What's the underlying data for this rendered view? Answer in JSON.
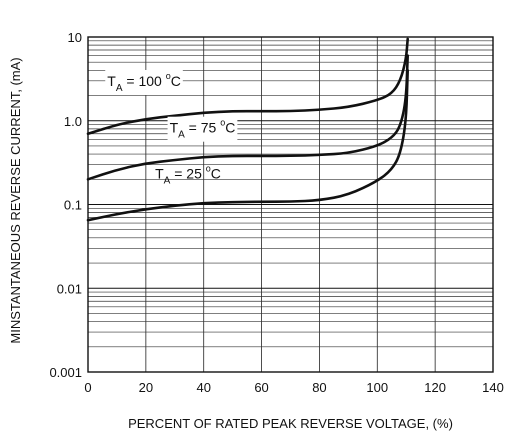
{
  "chart_data": {
    "type": "line",
    "xlabel": "PERCENT OF RATED PEAK REVERSE VOLTAGE, (%)",
    "ylabel": "MINSTANTANEOUS REVERSE CURRENT, (mA)",
    "xlim": [
      0,
      140
    ],
    "ylim": [
      0.001,
      10
    ],
    "y_scale": "log",
    "grid": true,
    "x_ticks": [
      0,
      20,
      40,
      60,
      80,
      100,
      120,
      140
    ],
    "y_ticks": [
      {
        "value": 0.001,
        "label": "0.001"
      },
      {
        "value": 0.01,
        "label": "0.01"
      },
      {
        "value": 0.1,
        "label": "0.1"
      },
      {
        "value": 1,
        "label": "1.0"
      },
      {
        "value": 10,
        "label": "10"
      }
    ],
    "series": [
      {
        "label": {
          "base": "T",
          "sub": "A",
          "rest": " = 100 ",
          "sup": "o",
          "unit": "C"
        },
        "x": [
          0,
          10,
          20,
          30,
          40,
          50,
          60,
          70,
          80,
          90,
          100,
          105,
          108,
          110,
          110.5
        ],
        "y": [
          0.7,
          0.9,
          1.05,
          1.15,
          1.25,
          1.3,
          1.3,
          1.3,
          1.35,
          1.45,
          1.75,
          2.1,
          3.0,
          5.5,
          9.5
        ]
      },
      {
        "label": {
          "base": "T",
          "sub": "A",
          "rest": " = 75 ",
          "sup": "o",
          "unit": "C"
        },
        "x": [
          0,
          10,
          20,
          30,
          40,
          50,
          60,
          70,
          80,
          90,
          100,
          105,
          108,
          110,
          110.5
        ],
        "y": [
          0.2,
          0.26,
          0.31,
          0.34,
          0.37,
          0.38,
          0.38,
          0.38,
          0.39,
          0.41,
          0.5,
          0.62,
          0.85,
          1.8,
          6.0
        ]
      },
      {
        "label": {
          "base": "T",
          "sub": "A",
          "rest": " = 25 ",
          "sup": "o",
          "unit": "C"
        },
        "x": [
          0,
          10,
          20,
          30,
          40,
          50,
          60,
          70,
          80,
          90,
          100,
          105,
          108,
          110,
          110.5
        ],
        "y": [
          0.065,
          0.077,
          0.088,
          0.097,
          0.104,
          0.107,
          0.108,
          0.108,
          0.112,
          0.13,
          0.19,
          0.26,
          0.4,
          1.0,
          4.0
        ]
      }
    ]
  }
}
